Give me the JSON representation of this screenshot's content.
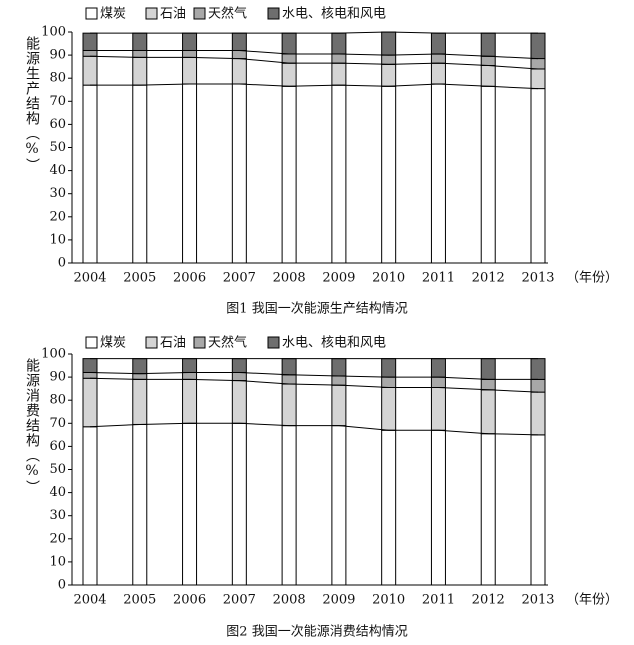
{
  "chart_data": [
    {
      "type": "stacked-bar",
      "title": "图1 我国一次能源生产结构情况",
      "y_label": "能源生产结构（%）",
      "x_label": "（年份）",
      "categories": [
        "2004",
        "2005",
        "2006",
        "2007",
        "2008",
        "2009",
        "2010",
        "2011",
        "2012",
        "2013"
      ],
      "series": [
        {
          "name": "煤炭",
          "color": "#ffffff",
          "values": [
            77,
            77,
            77.5,
            77.5,
            76.5,
            77,
            76.5,
            77.5,
            76.5,
            75.5
          ]
        },
        {
          "name": "石油",
          "color": "#d4d4d4",
          "values": [
            12.5,
            12,
            11.5,
            11,
            10,
            9.5,
            9.5,
            9,
            9,
            8.5
          ]
        },
        {
          "name": "天然气",
          "color": "#a8a8a8",
          "values": [
            2.5,
            3,
            3,
            3.5,
            4,
            4,
            4,
            4,
            4,
            4.5
          ]
        },
        {
          "name": "水电、核电和风电",
          "color": "#6e6e6e",
          "values": [
            7.5,
            7.5,
            7.5,
            7.5,
            9,
            9,
            10,
            9,
            10,
            11
          ]
        }
      ],
      "ylim": [
        0,
        100
      ],
      "yticks": [
        0,
        10,
        20,
        30,
        40,
        50,
        60,
        70,
        80,
        90,
        100
      ]
    },
    {
      "type": "stacked-bar",
      "title": "图2 我国一次能源消费结构情况",
      "y_label": "能源消费结构（%）",
      "x_label": "（年份）",
      "categories": [
        "2004",
        "2005",
        "2006",
        "2007",
        "2008",
        "2009",
        "2010",
        "2011",
        "2012",
        "2013"
      ],
      "series": [
        {
          "name": "煤炭",
          "color": "#ffffff",
          "values": [
            68.5,
            69.5,
            70,
            70,
            69,
            69,
            67,
            67,
            65.5,
            65
          ]
        },
        {
          "name": "石油",
          "color": "#d4d4d4",
          "values": [
            21,
            19.5,
            19,
            18.5,
            18,
            17.5,
            18.5,
            18.5,
            19,
            18.5
          ]
        },
        {
          "name": "天然气",
          "color": "#a8a8a8",
          "values": [
            2.5,
            2.5,
            3,
            3.5,
            4,
            4,
            4.5,
            4.5,
            4.5,
            5.5
          ]
        },
        {
          "name": "水电、核电和风电",
          "color": "#6e6e6e",
          "values": [
            6,
            6.5,
            6,
            6,
            7,
            7.5,
            8,
            8,
            9,
            9
          ]
        }
      ],
      "ylim": [
        0,
        100
      ],
      "yticks": [
        0,
        10,
        20,
        30,
        40,
        50,
        60,
        70,
        80,
        90,
        100
      ]
    }
  ]
}
